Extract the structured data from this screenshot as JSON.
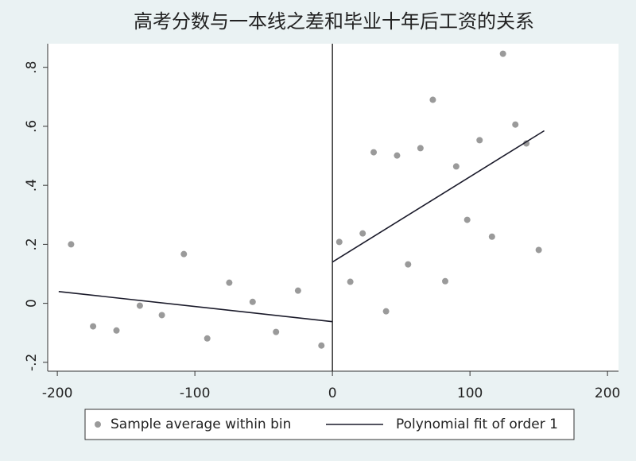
{
  "chart_data": {
    "type": "scatter",
    "title": "高考分数与一本线之差和毕业十年后工资的关系",
    "xlim": [
      -207,
      208
    ],
    "ylim": [
      -0.23,
      0.88
    ],
    "xticks": [
      -200,
      -100,
      0,
      100,
      200
    ],
    "yticks": [
      {
        "value": -0.2,
        "label": "-.2"
      },
      0,
      {
        "value": 0.2,
        "label": ".2"
      },
      {
        "value": 0.4,
        "label": ".4"
      },
      {
        "value": 0.6,
        "label": ".6"
      },
      {
        "value": 0.8,
        "label": ".8"
      }
    ],
    "vline": 0,
    "legend": "bottom",
    "series": [
      {
        "name": "Sample average within bin",
        "type": "scatter",
        "color": "#9a9a9a",
        "x": [
          -190,
          -174,
          -157,
          -140,
          -124,
          -108,
          -91,
          -75,
          -58,
          -41,
          -25,
          -8,
          5,
          13,
          22,
          30,
          39,
          47,
          55,
          64,
          73,
          82,
          90,
          98,
          107,
          116,
          124,
          133,
          141,
          150
        ],
        "values": [
          0.2,
          -0.078,
          -0.092,
          -0.008,
          -0.04,
          0.167,
          -0.119,
          0.07,
          0.005,
          -0.097,
          0.043,
          -0.143,
          0.208,
          0.073,
          0.237,
          0.512,
          -0.027,
          0.501,
          0.132,
          0.526,
          0.69,
          0.075,
          0.464,
          0.283,
          0.553,
          0.226,
          0.846,
          0.606,
          0.542,
          0.181
        ]
      },
      {
        "name": "Polynomial fit of order 1",
        "type": "line",
        "color": "#1a1a2a",
        "x": [
          -199,
          0,
          null,
          0,
          154
        ],
        "values": [
          0.04,
          -0.062,
          null,
          0.14,
          0.585
        ]
      }
    ]
  }
}
